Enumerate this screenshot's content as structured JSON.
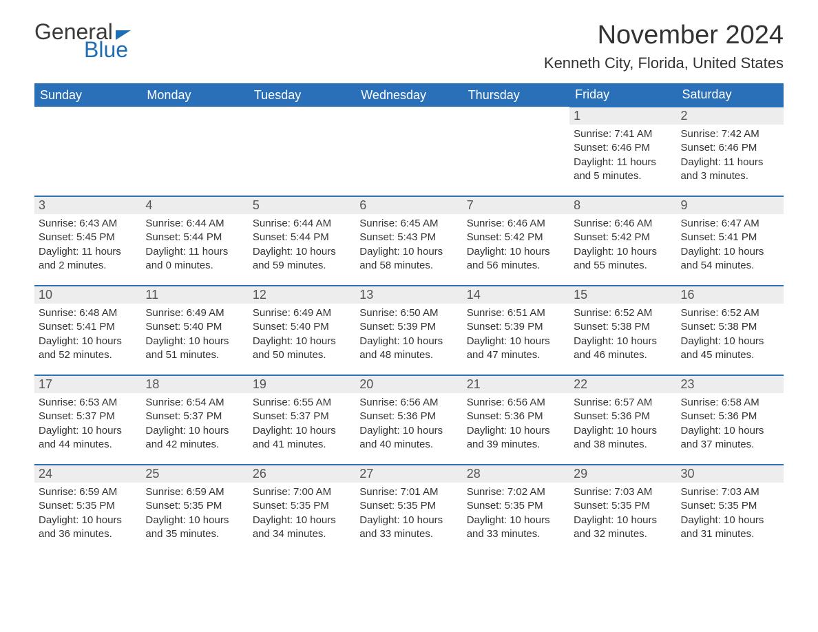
{
  "logo": {
    "word1": "General",
    "word2": "Blue"
  },
  "month_title": "November 2024",
  "location": "Kenneth City, Florida, United States",
  "colors": {
    "header_bg": "#2a70b8",
    "header_text": "#ffffff",
    "daynum_bg": "#ededed",
    "cell_border": "#2a70b8",
    "text": "#333333",
    "logo_blue": "#1f6db5",
    "background": "#ffffff"
  },
  "calendar": {
    "type": "table",
    "columns": [
      "Sunday",
      "Monday",
      "Tuesday",
      "Wednesday",
      "Thursday",
      "Friday",
      "Saturday"
    ],
    "col_fontsize": 18,
    "daynum_fontsize": 18,
    "body_fontsize": 15,
    "weeks": [
      [
        null,
        null,
        null,
        null,
        null,
        {
          "n": "1",
          "sunrise": "7:41 AM",
          "sunset": "6:46 PM",
          "daylight": "11 hours and 5 minutes."
        },
        {
          "n": "2",
          "sunrise": "7:42 AM",
          "sunset": "6:46 PM",
          "daylight": "11 hours and 3 minutes."
        }
      ],
      [
        {
          "n": "3",
          "sunrise": "6:43 AM",
          "sunset": "5:45 PM",
          "daylight": "11 hours and 2 minutes."
        },
        {
          "n": "4",
          "sunrise": "6:44 AM",
          "sunset": "5:44 PM",
          "daylight": "11 hours and 0 minutes."
        },
        {
          "n": "5",
          "sunrise": "6:44 AM",
          "sunset": "5:44 PM",
          "daylight": "10 hours and 59 minutes."
        },
        {
          "n": "6",
          "sunrise": "6:45 AM",
          "sunset": "5:43 PM",
          "daylight": "10 hours and 58 minutes."
        },
        {
          "n": "7",
          "sunrise": "6:46 AM",
          "sunset": "5:42 PM",
          "daylight": "10 hours and 56 minutes."
        },
        {
          "n": "8",
          "sunrise": "6:46 AM",
          "sunset": "5:42 PM",
          "daylight": "10 hours and 55 minutes."
        },
        {
          "n": "9",
          "sunrise": "6:47 AM",
          "sunset": "5:41 PM",
          "daylight": "10 hours and 54 minutes."
        }
      ],
      [
        {
          "n": "10",
          "sunrise": "6:48 AM",
          "sunset": "5:41 PM",
          "daylight": "10 hours and 52 minutes."
        },
        {
          "n": "11",
          "sunrise": "6:49 AM",
          "sunset": "5:40 PM",
          "daylight": "10 hours and 51 minutes."
        },
        {
          "n": "12",
          "sunrise": "6:49 AM",
          "sunset": "5:40 PM",
          "daylight": "10 hours and 50 minutes."
        },
        {
          "n": "13",
          "sunrise": "6:50 AM",
          "sunset": "5:39 PM",
          "daylight": "10 hours and 48 minutes."
        },
        {
          "n": "14",
          "sunrise": "6:51 AM",
          "sunset": "5:39 PM",
          "daylight": "10 hours and 47 minutes."
        },
        {
          "n": "15",
          "sunrise": "6:52 AM",
          "sunset": "5:38 PM",
          "daylight": "10 hours and 46 minutes."
        },
        {
          "n": "16",
          "sunrise": "6:52 AM",
          "sunset": "5:38 PM",
          "daylight": "10 hours and 45 minutes."
        }
      ],
      [
        {
          "n": "17",
          "sunrise": "6:53 AM",
          "sunset": "5:37 PM",
          "daylight": "10 hours and 44 minutes."
        },
        {
          "n": "18",
          "sunrise": "6:54 AM",
          "sunset": "5:37 PM",
          "daylight": "10 hours and 42 minutes."
        },
        {
          "n": "19",
          "sunrise": "6:55 AM",
          "sunset": "5:37 PM",
          "daylight": "10 hours and 41 minutes."
        },
        {
          "n": "20",
          "sunrise": "6:56 AM",
          "sunset": "5:36 PM",
          "daylight": "10 hours and 40 minutes."
        },
        {
          "n": "21",
          "sunrise": "6:56 AM",
          "sunset": "5:36 PM",
          "daylight": "10 hours and 39 minutes."
        },
        {
          "n": "22",
          "sunrise": "6:57 AM",
          "sunset": "5:36 PM",
          "daylight": "10 hours and 38 minutes."
        },
        {
          "n": "23",
          "sunrise": "6:58 AM",
          "sunset": "5:36 PM",
          "daylight": "10 hours and 37 minutes."
        }
      ],
      [
        {
          "n": "24",
          "sunrise": "6:59 AM",
          "sunset": "5:35 PM",
          "daylight": "10 hours and 36 minutes."
        },
        {
          "n": "25",
          "sunrise": "6:59 AM",
          "sunset": "5:35 PM",
          "daylight": "10 hours and 35 minutes."
        },
        {
          "n": "26",
          "sunrise": "7:00 AM",
          "sunset": "5:35 PM",
          "daylight": "10 hours and 34 minutes."
        },
        {
          "n": "27",
          "sunrise": "7:01 AM",
          "sunset": "5:35 PM",
          "daylight": "10 hours and 33 minutes."
        },
        {
          "n": "28",
          "sunrise": "7:02 AM",
          "sunset": "5:35 PM",
          "daylight": "10 hours and 33 minutes."
        },
        {
          "n": "29",
          "sunrise": "7:03 AM",
          "sunset": "5:35 PM",
          "daylight": "10 hours and 32 minutes."
        },
        {
          "n": "30",
          "sunrise": "7:03 AM",
          "sunset": "5:35 PM",
          "daylight": "10 hours and 31 minutes."
        }
      ]
    ],
    "labels": {
      "sunrise": "Sunrise: ",
      "sunset": "Sunset: ",
      "daylight": "Daylight: "
    }
  }
}
